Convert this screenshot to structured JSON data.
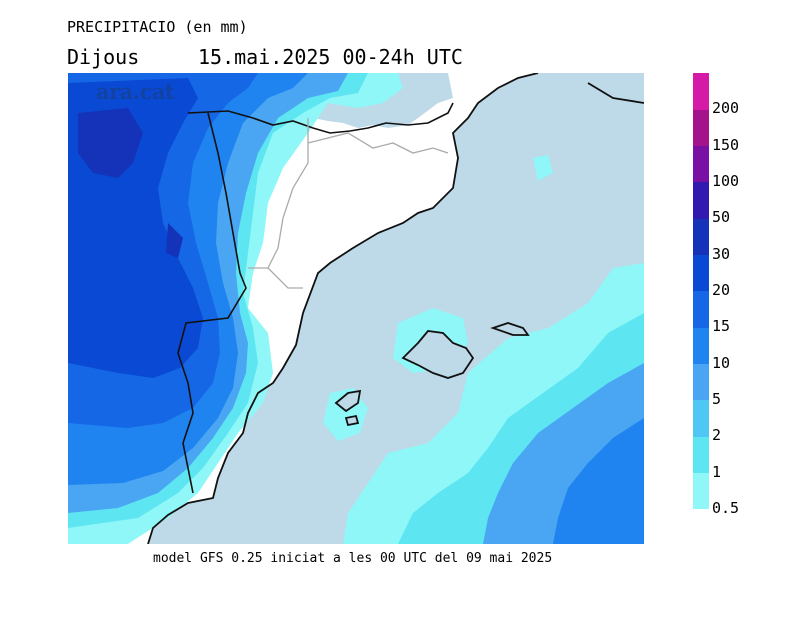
{
  "header": {
    "variable": "PRECIPITACIO (en mm)",
    "day": "Dijous",
    "date_range": "15.mai.2025 00-24h UTC"
  },
  "watermark": "ara.cat",
  "footer": "model GFS 0.25 iniciat a les 00 UTC del 09 mai 2025",
  "legend": {
    "levels": [
      "0.5",
      "1",
      "2",
      "5",
      "10",
      "15",
      "20",
      "30",
      "50",
      "100",
      "150",
      "200"
    ],
    "colors": [
      "#8ff7f7",
      "#5de6f2",
      "#4ec7f4",
      "#4aa5f2",
      "#1f84f0",
      "#1567e6",
      "#0a49d4",
      "#1433b8",
      "#3219b0",
      "#7a0fa3",
      "#a4128c",
      "#d41aa6"
    ]
  },
  "colors": {
    "sea": "#bed9e8",
    "land": "#ffffff",
    "coast": "#111111",
    "border": "#aaaaaa"
  }
}
